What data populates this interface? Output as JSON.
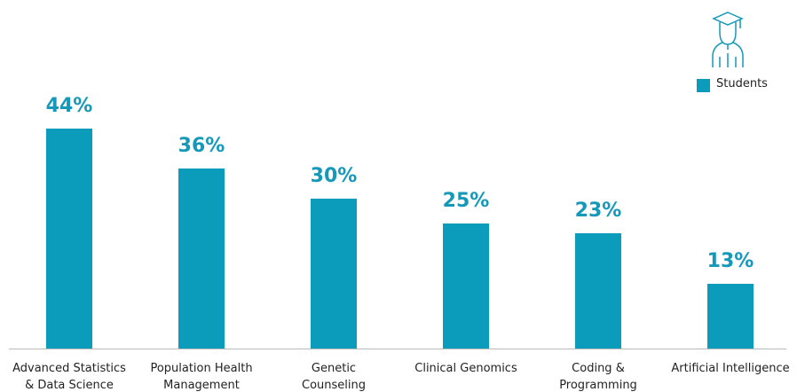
{
  "chart_data": {
    "type": "bar",
    "categories": [
      "Advanced Statistics\n& Data Science",
      "Population Health\nManagement",
      "Genetic\nCounseling",
      "Clinical Genomics",
      "Coding &\nProgramming",
      "Artificial Intelligence"
    ],
    "series": [
      {
        "name": "Students",
        "color": "#0a9cba",
        "values": [
          44,
          36,
          30,
          25,
          23,
          13
        ],
        "value_labels": [
          "44%",
          "36%",
          "30%",
          "25%",
          "23%",
          "13%"
        ]
      }
    ]
  }
}
